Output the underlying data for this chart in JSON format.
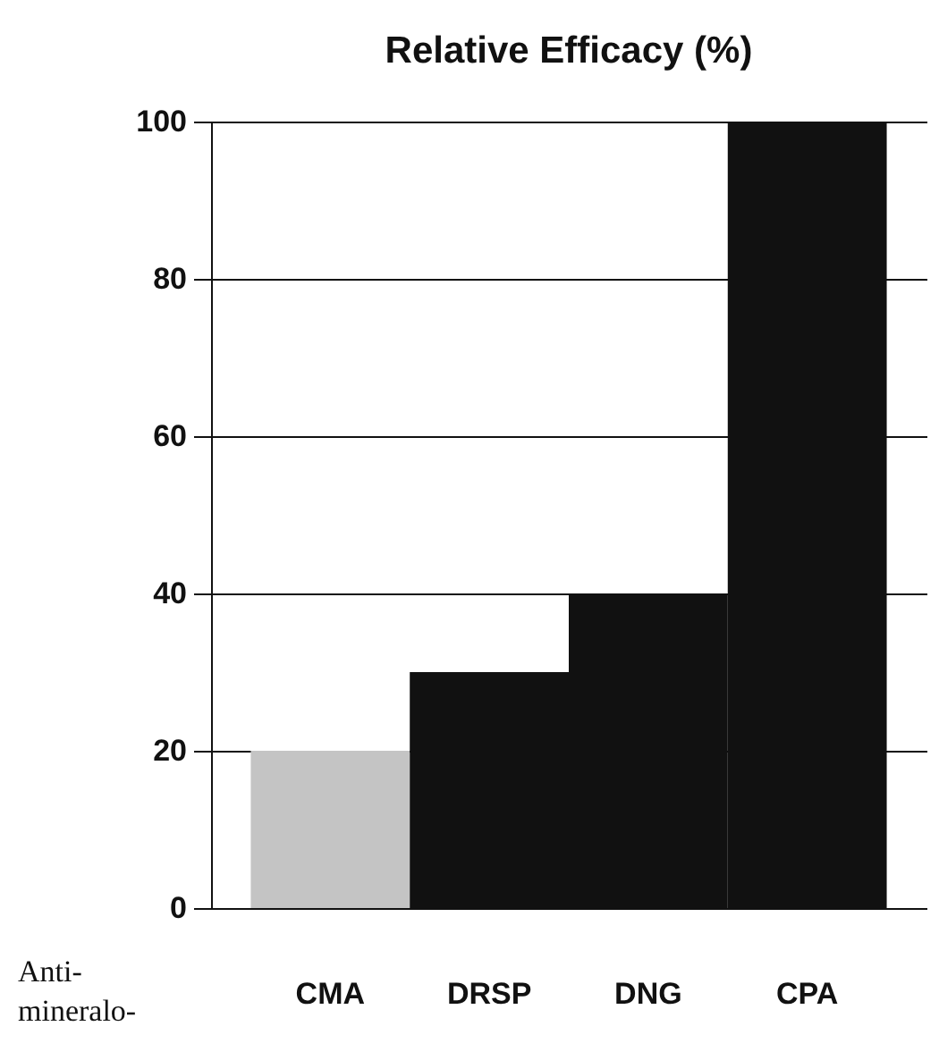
{
  "chart_data": {
    "type": "bar",
    "title": "Relative Efficacy (%)",
    "categories": [
      "CMA",
      "DRSP",
      "DNG",
      "CPA"
    ],
    "values": [
      20,
      30,
      40,
      100
    ],
    "colors": [
      "#c4c4c4",
      "#111111",
      "#111111",
      "#111111"
    ],
    "ylim": [
      0,
      100
    ],
    "yticks": [
      0,
      20,
      40,
      60,
      80,
      100
    ],
    "grid": "y",
    "annotations": [
      "Anti- mineralo-"
    ]
  }
}
